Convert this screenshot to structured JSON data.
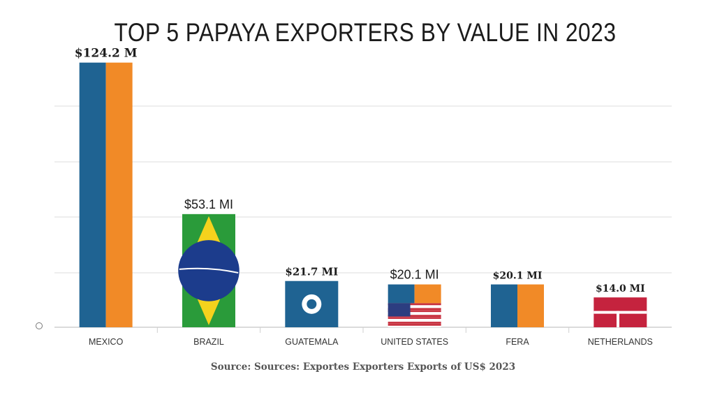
{
  "chart_data": {
    "type": "bar",
    "title": "TOP 5 PAPAYA EXPORTERS BY VALUE IN 2023",
    "categories": [
      "MEXICO",
      "BRAZIL",
      "GUATEMALA",
      "UNITED STATES",
      "FERA",
      "NETHERLANDS"
    ],
    "values": [
      124.2,
      53.1,
      21.7,
      20.1,
      20.1,
      14.0
    ],
    "data_labels": [
      "$124.2 M",
      "$53.1 MI",
      "$21.7 MI",
      "$20.1 MI",
      "$20.1 MI",
      "$14.0 MI"
    ],
    "bar_fills": [
      "split",
      "flag-brazil",
      "flag-guatemala",
      "split-flag-usa",
      "split",
      "flag-denmark"
    ],
    "colors": {
      "blue": "#1f6392",
      "orange": "#f18a27",
      "grid": "#e3e3e3",
      "axis": "#cfcfcf"
    },
    "ylim": [
      0,
      130
    ],
    "grid": true,
    "legend": "none",
    "source": "Source: Sources: Exportes Exporters Exports of US$ 2023"
  }
}
